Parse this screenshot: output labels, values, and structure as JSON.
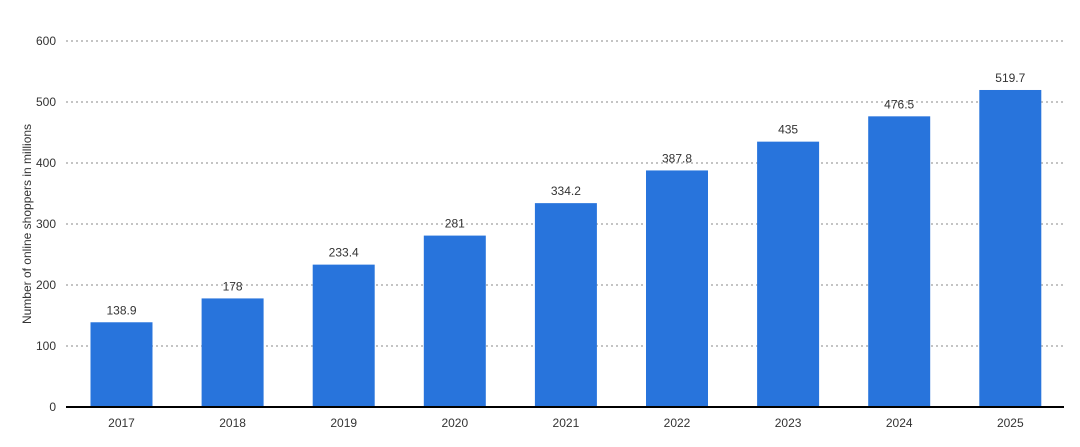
{
  "chart_data": {
    "type": "bar",
    "categories": [
      "2017",
      "2018",
      "2019",
      "2020",
      "2021",
      "2022",
      "2023",
      "2024",
      "2025"
    ],
    "values": [
      138.9,
      178,
      233.4,
      281,
      334.2,
      387.8,
      435,
      476.5,
      519.7
    ],
    "value_labels": [
      "138.9",
      "178",
      "233.4",
      "281",
      "334.2",
      "387.8",
      "435",
      "476.5",
      "519.7"
    ],
    "title": "",
    "xlabel": "",
    "ylabel": "Number of online shoppers in millions",
    "ylim": [
      0,
      600
    ],
    "yticks": [
      0,
      100,
      200,
      300,
      400,
      500,
      600
    ],
    "grid": true,
    "legend": "none",
    "bar_color": "#2874dc"
  }
}
